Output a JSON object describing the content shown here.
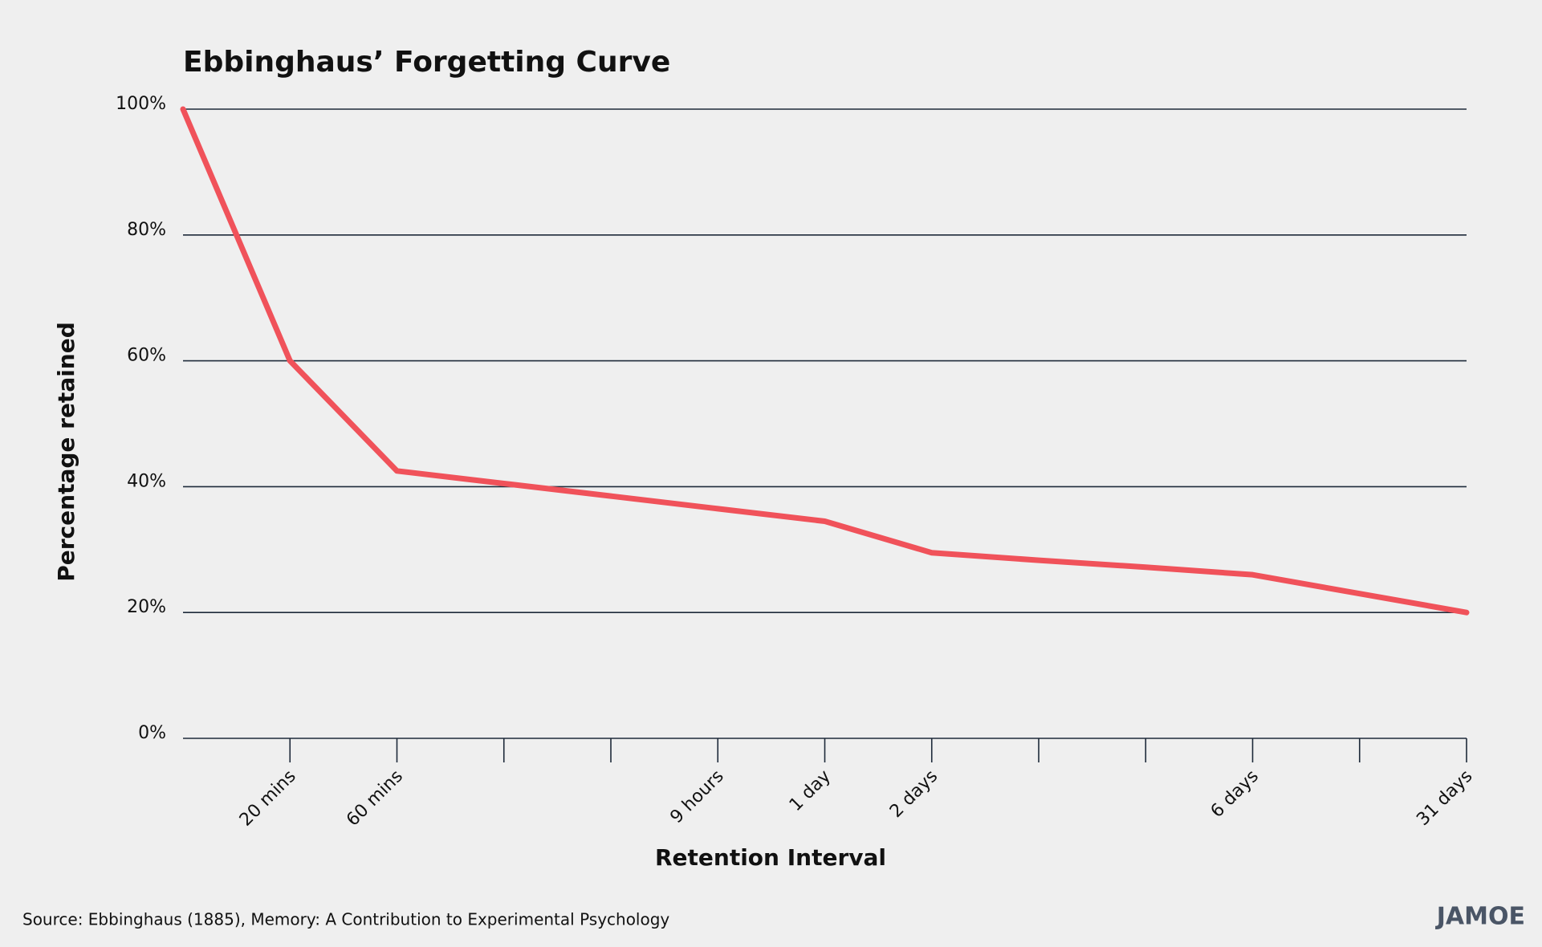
{
  "chart_data": {
    "type": "line",
    "title": "Ebbinghaus’ Forgetting Curve",
    "x_label": "Retention Interval",
    "y_label": "Percentage retained",
    "source": "Source: Ebbinghaus (1885), Memory: A Contribution to Experimental Psychology",
    "brand": "JAMOE",
    "categories": [
      null,
      "20 mins",
      "60 mins",
      null,
      null,
      "9 hours",
      "1 day",
      "2 days",
      null,
      null,
      "6 days",
      null,
      "31 days"
    ],
    "values": [
      100,
      60,
      42.5,
      40.5,
      38.5,
      36.5,
      34.5,
      29.5,
      28.3,
      27.2,
      26,
      23,
      20
    ],
    "color": "#f0525a",
    "ylim": [
      0,
      100
    ],
    "yticks": [
      {
        "value": 0,
        "label": "0%"
      },
      {
        "value": 20,
        "label": "20%"
      },
      {
        "value": 40,
        "label": "40%"
      },
      {
        "value": 60,
        "label": "60%"
      },
      {
        "value": 80,
        "label": "80%"
      },
      {
        "value": 100,
        "label": "100%"
      }
    ],
    "grid": true
  }
}
